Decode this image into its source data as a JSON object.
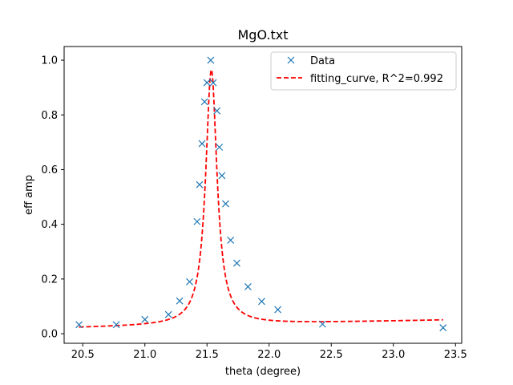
{
  "chart_data": {
    "type": "scatter",
    "title": "MgO.txt",
    "xlabel": "theta (degree)",
    "ylabel": "eff amp",
    "xlim": [
      20.35,
      23.55
    ],
    "ylim": [
      -0.035,
      1.05
    ],
    "xticks": [
      20.5,
      21.0,
      21.5,
      22.0,
      22.5,
      23.0,
      23.5
    ],
    "xtick_labels": [
      "20.5",
      "21.0",
      "21.5",
      "22.0",
      "22.5",
      "23.0",
      "23.5"
    ],
    "yticks": [
      0.0,
      0.2,
      0.4,
      0.6,
      0.8,
      1.0
    ],
    "ytick_labels": [
      "0.0",
      "0.2",
      "0.4",
      "0.6",
      "0.8",
      "1.0"
    ],
    "grid": false,
    "legend_position": "top-right",
    "series": [
      {
        "name": "Data",
        "kind": "scatter",
        "marker": "x",
        "color": "#1f77b4",
        "x": [
          20.47,
          20.77,
          21.0,
          21.19,
          21.28,
          21.36,
          21.42,
          21.44,
          21.46,
          21.48,
          21.5,
          21.53,
          21.55,
          21.58,
          21.6,
          21.62,
          21.65,
          21.69,
          21.74,
          21.83,
          21.94,
          22.07,
          22.43,
          23.4
        ],
        "y": [
          0.033,
          0.033,
          0.052,
          0.07,
          0.12,
          0.19,
          0.41,
          0.545,
          0.695,
          0.848,
          0.918,
          1.0,
          0.918,
          0.815,
          0.682,
          0.578,
          0.475,
          0.342,
          0.258,
          0.172,
          0.118,
          0.088,
          0.035,
          0.022
        ]
      },
      {
        "name": "fitting_curve, R^2=0.992",
        "kind": "line",
        "linestyle": "dashed",
        "color": "#ff0000",
        "model": "lorentzian",
        "center": 21.535,
        "hwhm": 0.055,
        "amplitude": 0.935,
        "baseline_start": 0.022,
        "baseline_end": 0.05,
        "x_range": [
          20.47,
          23.4
        ]
      }
    ]
  }
}
